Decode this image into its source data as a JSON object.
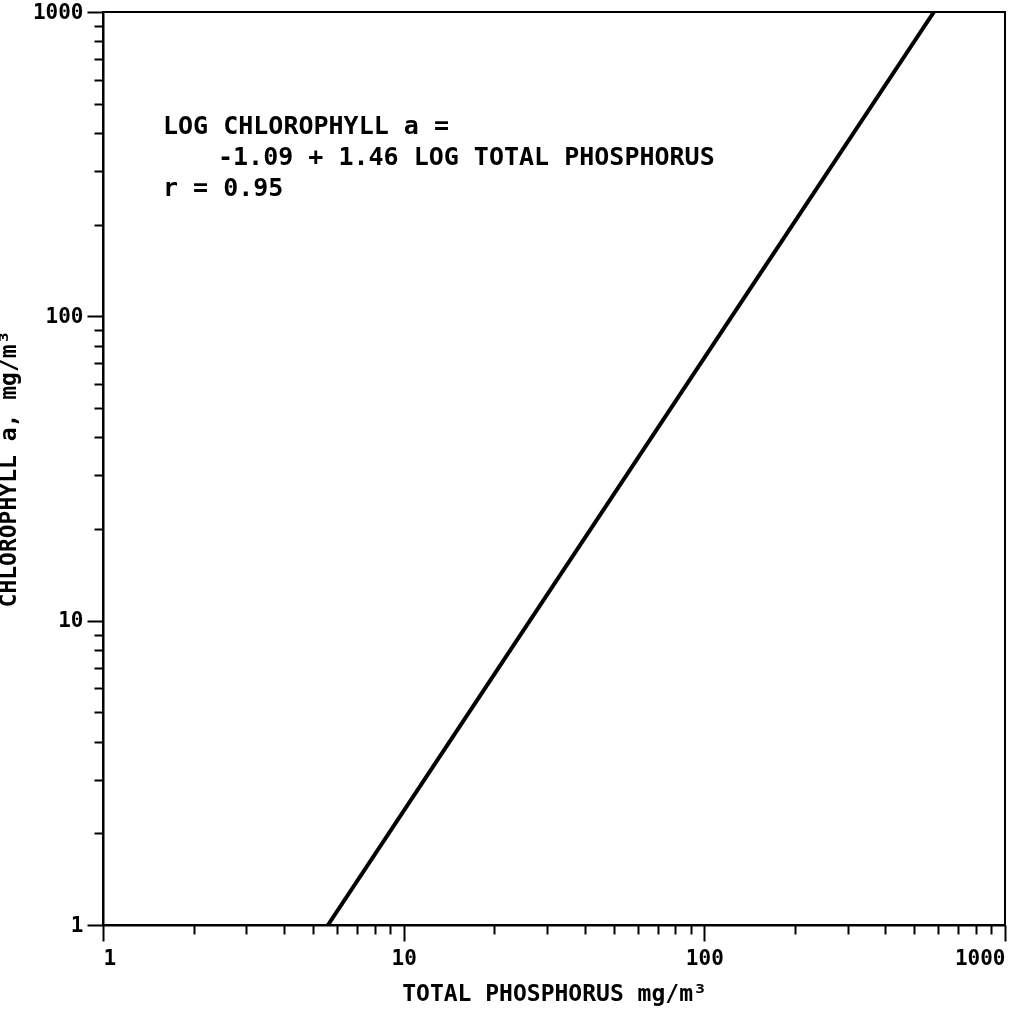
{
  "chart_data": {
    "type": "line",
    "xlabel": "TOTAL PHOSPHORUS mg/m³",
    "ylabel": "CHLOROPHYLL a, mg/m³",
    "annotations": [
      "LOG CHLOROPHYLL a =",
      "-1.09 + 1.46 LOG TOTAL PHOSPHORUS",
      "r = 0.95"
    ],
    "x": [
      5.6,
      580
    ],
    "series": [
      {
        "color": "#000000",
        "values": [
          1,
          1000
        ]
      }
    ],
    "log": "xy",
    "grid": false,
    "line_style": "solid",
    "xlim": [
      1,
      1000
    ],
    "ylim": [
      1,
      1000
    ],
    "xticks": [
      1,
      {
        "value": 2,
        "label": null
      },
      {
        "value": 3,
        "label": null
      },
      {
        "value": 4,
        "label": null
      },
      {
        "value": 5,
        "label": null
      },
      {
        "value": 6,
        "label": null
      },
      {
        "value": 7,
        "label": null
      },
      {
        "value": 8,
        "label": null
      },
      {
        "value": 9,
        "label": null
      },
      10,
      {
        "value": 20,
        "label": null
      },
      {
        "value": 30,
        "label": null
      },
      {
        "value": 40,
        "label": null
      },
      {
        "value": 50,
        "label": null
      },
      {
        "value": 60,
        "label": null
      },
      {
        "value": 70,
        "label": null
      },
      {
        "value": 80,
        "label": null
      },
      {
        "value": 90,
        "label": null
      },
      100,
      {
        "value": 200,
        "label": null
      },
      {
        "value": 300,
        "label": null
      },
      {
        "value": 400,
        "label": null
      },
      {
        "value": 500,
        "label": null
      },
      {
        "value": 600,
        "label": null
      },
      {
        "value": 700,
        "label": null
      },
      {
        "value": 800,
        "label": null
      },
      {
        "value": 900,
        "label": null
      },
      1000
    ],
    "yticks": [
      1,
      {
        "value": 2,
        "label": null
      },
      {
        "value": 3,
        "label": null
      },
      {
        "value": 4,
        "label": null
      },
      {
        "value": 5,
        "label": null
      },
      {
        "value": 6,
        "label": null
      },
      {
        "value": 7,
        "label": null
      },
      {
        "value": 8,
        "label": null
      },
      {
        "value": 9,
        "label": null
      },
      10,
      {
        "value": 20,
        "label": null
      },
      {
        "value": 30,
        "label": null
      },
      {
        "value": 40,
        "label": null
      },
      {
        "value": 50,
        "label": null
      },
      {
        "value": 60,
        "label": null
      },
      {
        "value": 70,
        "label": null
      },
      {
        "value": 80,
        "label": null
      },
      {
        "value": 90,
        "label": null
      },
      100,
      {
        "value": 200,
        "label": null
      },
      {
        "value": 300,
        "label": null
      },
      {
        "value": 400,
        "label": null
      },
      {
        "value": 500,
        "label": null
      },
      {
        "value": 600,
        "label": null
      },
      {
        "value": 700,
        "label": null
      },
      {
        "value": 800,
        "label": null
      },
      {
        "value": 900,
        "label": null
      },
      1000
    ]
  }
}
